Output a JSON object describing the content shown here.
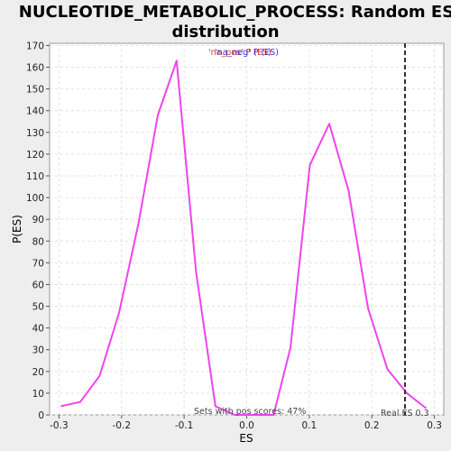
{
  "chart_data": {
    "type": "line",
    "title_line1": "NUCLEOTIDE_METABOLIC_PROCESS: Random ES",
    "title_line2": "distribution",
    "xlabel": "ES",
    "ylabel": "P(ES)",
    "xlim": [
      -0.315,
      0.315
    ],
    "ylim": [
      0,
      171
    ],
    "xticks": [
      -0.3,
      -0.2,
      -0.1,
      0.0,
      0.1,
      0.2,
      0.3
    ],
    "xtick_labels": [
      "-0.3",
      "-0.2",
      "-0.1",
      "0.0",
      "0.1",
      "0.2",
      "0.3"
    ],
    "yticks": [
      0,
      10,
      20,
      30,
      40,
      50,
      60,
      70,
      80,
      90,
      100,
      110,
      120,
      130,
      140,
      150,
      160,
      170
    ],
    "ytick_labels": [
      "0",
      "10",
      "20",
      "30",
      "40",
      "50",
      "60",
      "70",
      "80",
      "90",
      "100",
      "110",
      "120",
      "130",
      "140",
      "150",
      "160",
      "170"
    ],
    "grid": true,
    "legend": {
      "placement": "top-center",
      "entry_pos": "'na_pos' P (ES)",
      "entry_neg": "'na_neg' P (ES)",
      "color_pos": "#dd3333",
      "color_neg": "#3333dd"
    },
    "series": [
      {
        "color": "#ee44ee",
        "x": [
          -0.297,
          -0.266,
          -0.235,
          -0.204,
          -0.173,
          -0.142,
          -0.112,
          -0.081,
          -0.05,
          -0.019,
          0.012,
          0.043,
          0.07,
          0.101,
          0.132,
          0.163,
          0.194,
          0.225,
          0.256,
          0.287
        ],
        "y": [
          4,
          6,
          18,
          47,
          88,
          138,
          163,
          66,
          4,
          0,
          0,
          0,
          31,
          115,
          134,
          103,
          49,
          21,
          10,
          3
        ]
      }
    ],
    "real_es": {
      "x": 0.253,
      "label": "Real ES 0.3",
      "color": "#333333"
    },
    "annotation": "Sets with pos scores: 47%",
    "colors": {
      "background": "#eeeeee",
      "plot_bg": "#ffffff",
      "grid": "#e2e2e2"
    }
  }
}
